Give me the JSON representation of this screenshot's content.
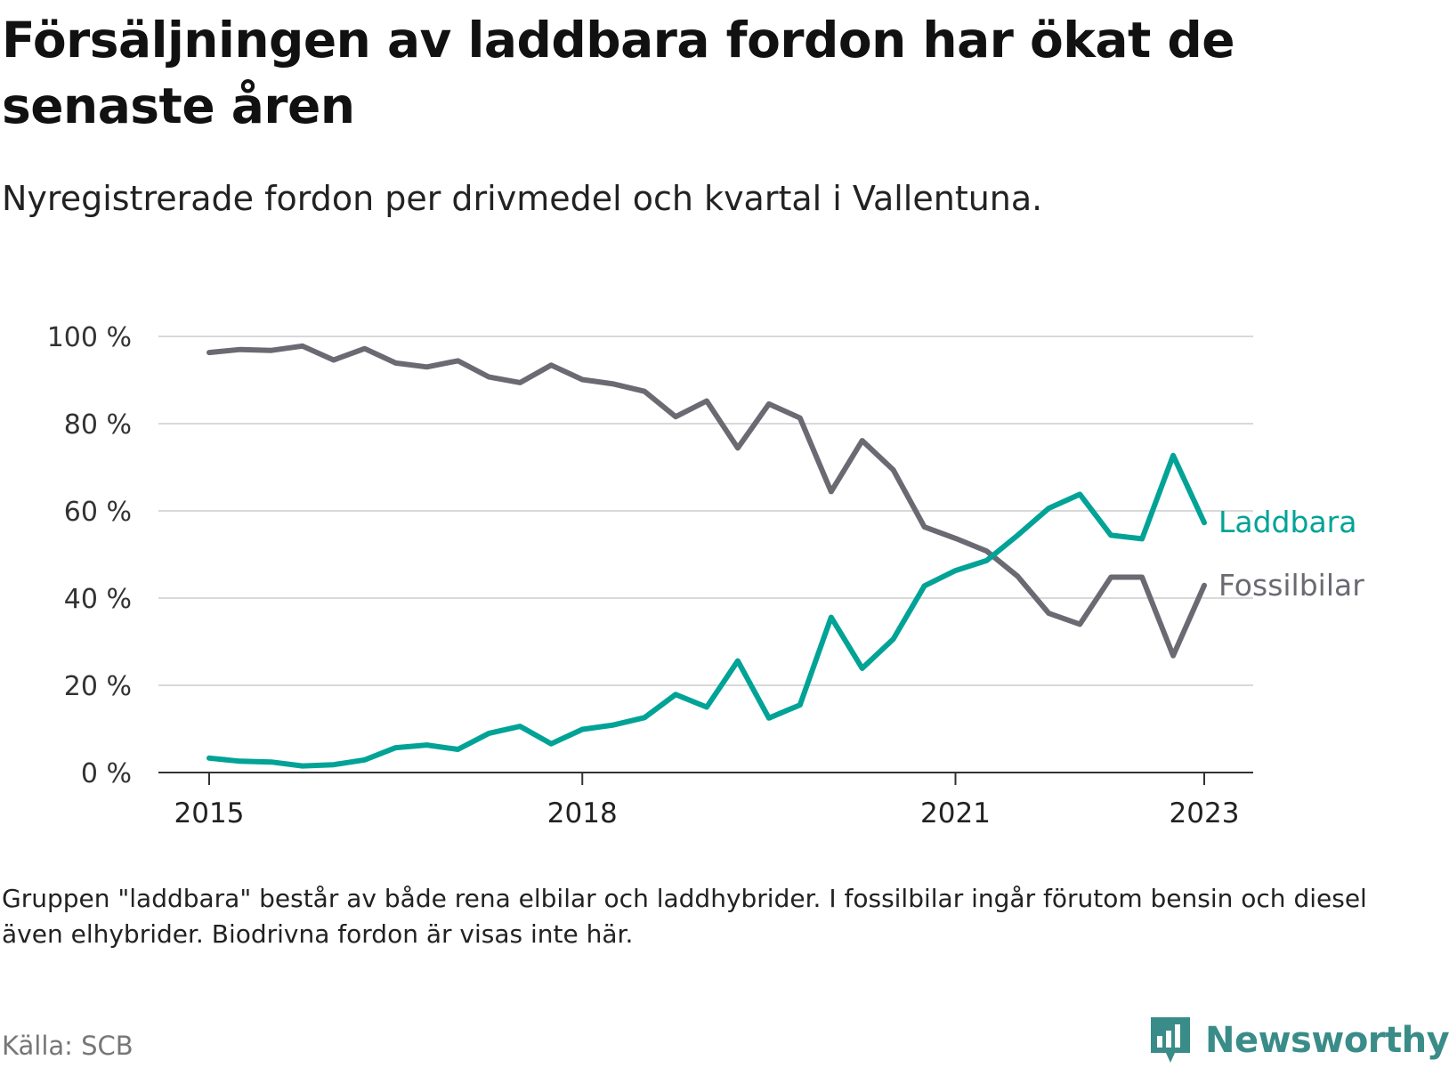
{
  "header": {
    "title": "Försäljningen av laddbara fordon har ökat de senaste åren",
    "subtitle": "Nyregistrerade fordon per drivmedel och kvartal i Vallentuna."
  },
  "footer": {
    "note": "Gruppen \"laddbara\" består av både rena elbilar och laddhybrider. I fossilbilar ingår förutom bensin och diesel även elhybrider. Biodrivna fordon är visas inte här.",
    "source": "Källa: SCB",
    "brand": "Newsworthy"
  },
  "chart_data": {
    "type": "line",
    "title": "Försäljningen av laddbara fordon har ökat de senaste åren",
    "subtitle": "Nyregistrerade fordon per drivmedel och kvartal i Vallentuna.",
    "xlabel": "",
    "ylabel": "",
    "x": [
      "2015 Q1",
      "2015 Q2",
      "2015 Q3",
      "2015 Q4",
      "2016 Q1",
      "2016 Q2",
      "2016 Q3",
      "2016 Q4",
      "2017 Q1",
      "2017 Q2",
      "2017 Q3",
      "2017 Q4",
      "2018 Q1",
      "2018 Q2",
      "2018 Q3",
      "2018 Q4",
      "2019 Q1",
      "2019 Q2",
      "2019 Q3",
      "2019 Q4",
      "2020 Q1",
      "2020 Q2",
      "2020 Q3",
      "2020 Q4",
      "2021 Q1",
      "2021 Q2",
      "2021 Q3",
      "2021 Q4",
      "2022 Q1",
      "2022 Q2",
      "2022 Q3",
      "2022 Q4",
      "2023 Q1"
    ],
    "x_ticks": [
      "2015",
      "2018",
      "2021",
      "2023"
    ],
    "x_tick_indices": [
      0,
      12,
      24,
      32
    ],
    "y_ticks": [
      0,
      20,
      40,
      60,
      80,
      100
    ],
    "y_tick_labels": [
      "0 %",
      "20 %",
      "40 %",
      "60 %",
      "80 %",
      "100 %"
    ],
    "ylim": [
      0,
      100
    ],
    "grid": true,
    "series": [
      {
        "name": "Laddbara",
        "color": "#00a396",
        "values": [
          3.3,
          2.6,
          2.4,
          1.5,
          1.8,
          2.9,
          5.7,
          6.3,
          5.3,
          9.0,
          10.6,
          6.6,
          9.9,
          10.9,
          12.6,
          17.9,
          15.0,
          25.6,
          12.5,
          15.5,
          35.6,
          23.9,
          30.6,
          42.8,
          46.3,
          48.6,
          54.4,
          60.6,
          63.8,
          54.4,
          53.6,
          72.7,
          57.3
        ]
      },
      {
        "name": "Fossilbilar",
        "color": "#6b6a72",
        "values": [
          96.3,
          97.0,
          96.8,
          97.8,
          94.6,
          97.2,
          93.9,
          93.0,
          94.4,
          90.7,
          89.4,
          93.4,
          90.1,
          89.1,
          87.4,
          81.6,
          85.2,
          74.4,
          84.5,
          81.3,
          64.4,
          76.1,
          69.4,
          56.3,
          53.7,
          50.8,
          45.0,
          36.5,
          34.0,
          44.8,
          44.8,
          26.8,
          42.9
        ]
      }
    ]
  }
}
